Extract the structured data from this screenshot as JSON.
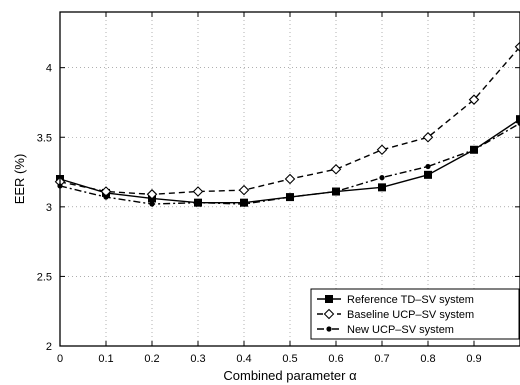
{
  "chart_data": {
    "type": "line",
    "title": "",
    "xlabel": "Combined parameter α",
    "ylabel": "EER (%)",
    "xlim": [
      0,
      1
    ],
    "ylim": [
      2,
      4.4
    ],
    "xticks": [
      0,
      0.1,
      0.2,
      0.3,
      0.4,
      0.5,
      0.6,
      0.7,
      0.8,
      0.9
    ],
    "xtick_labels": [
      "0",
      "0.1",
      "0.2",
      "0.3",
      "0.4",
      "0.5",
      "0.6",
      "0.7",
      "0.8",
      "0.9"
    ],
    "yticks": [
      2,
      2.5,
      3,
      3.5,
      4
    ],
    "ytick_labels": [
      "2",
      "2.5",
      "3",
      "3.5",
      "4"
    ],
    "grid": true,
    "legend_position": "bottom-right",
    "x": [
      0,
      0.1,
      0.2,
      0.3,
      0.4,
      0.5,
      0.6,
      0.7,
      0.8,
      0.9,
      1.0
    ],
    "series": [
      {
        "name": "Reference TD–SV system",
        "values": [
          3.2,
          3.1,
          3.06,
          3.03,
          3.03,
          3.07,
          3.11,
          3.14,
          3.23,
          3.41,
          3.63
        ],
        "line_style": "solid",
        "marker": "square",
        "color": "#000000"
      },
      {
        "name": "Baseline UCP–SV system",
        "values": [
          3.18,
          3.11,
          3.09,
          3.11,
          3.12,
          3.2,
          3.27,
          3.41,
          3.5,
          3.77,
          4.15
        ],
        "line_style": "dashed",
        "marker": "diamond",
        "color": "#000000"
      },
      {
        "name": "New UCP–SV system",
        "values": [
          3.15,
          3.07,
          3.02,
          3.03,
          3.02,
          3.07,
          3.11,
          3.21,
          3.29,
          3.41,
          3.6
        ],
        "line_style": "dashdot",
        "marker": "dot",
        "color": "#000000"
      }
    ]
  }
}
